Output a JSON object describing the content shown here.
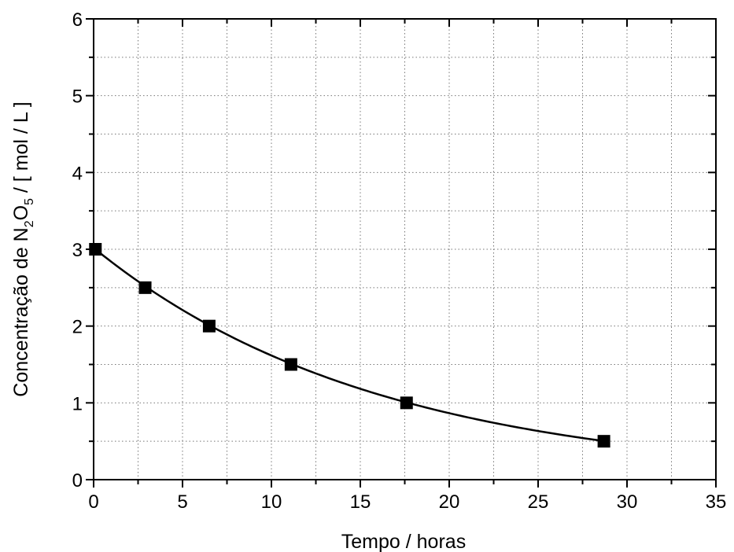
{
  "chart_data": {
    "type": "scatter",
    "title": "",
    "xlabel": "Tempo / horas",
    "ylabel": {
      "part1": "Concentração de N",
      "sub1": "2",
      "part2": "O",
      "sub2": "5",
      "part3": " / [ mol / L ]"
    },
    "xlim": [
      0,
      35
    ],
    "ylim": [
      0,
      6
    ],
    "xticks": [
      0,
      5,
      10,
      15,
      20,
      25,
      30,
      35
    ],
    "yticks": [
      0,
      1,
      2,
      3,
      4,
      5,
      6
    ],
    "grid": true,
    "legend": "none",
    "marker": "square",
    "color": "#000000",
    "points": [
      {
        "x": 0.1,
        "y": 3.0
      },
      {
        "x": 2.9,
        "y": 2.5
      },
      {
        "x": 6.5,
        "y": 2.0
      },
      {
        "x": 11.1,
        "y": 1.5
      },
      {
        "x": 17.6,
        "y": 1.0
      },
      {
        "x": 28.7,
        "y": 0.5
      }
    ],
    "curve": {
      "type": "exponential_decay",
      "y0": 3.0,
      "half_life_hours": 11.1
    }
  }
}
